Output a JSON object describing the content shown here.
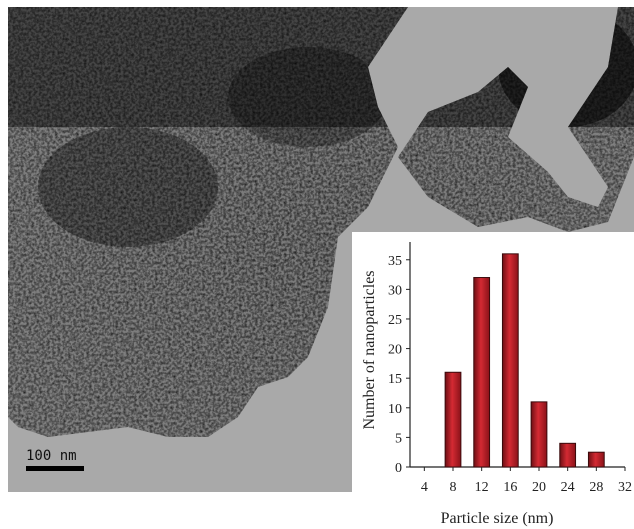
{
  "image": {
    "description_colors": {
      "background_light": "#a7a7a7",
      "particle_dark": "#1e1e1e"
    }
  },
  "scale_bar": {
    "label": "100 nm"
  },
  "inset_chart": {
    "bar_color": "#d42a33",
    "bar_edge": "#3a0a0c"
  },
  "chart_data": {
    "type": "bar",
    "xlabel": "Particle size (nm)",
    "ylabel": "Number of nanoparticles",
    "xlim": [
      2,
      32
    ],
    "ylim": [
      0,
      38
    ],
    "x_ticks": [
      4,
      8,
      12,
      16,
      20,
      24,
      28,
      32
    ],
    "y_ticks": [
      0,
      5,
      10,
      15,
      20,
      25,
      30,
      35
    ],
    "categories": [
      8,
      12,
      16,
      20,
      24,
      28
    ],
    "values": [
      16,
      32,
      36,
      11,
      4,
      2.5
    ]
  }
}
